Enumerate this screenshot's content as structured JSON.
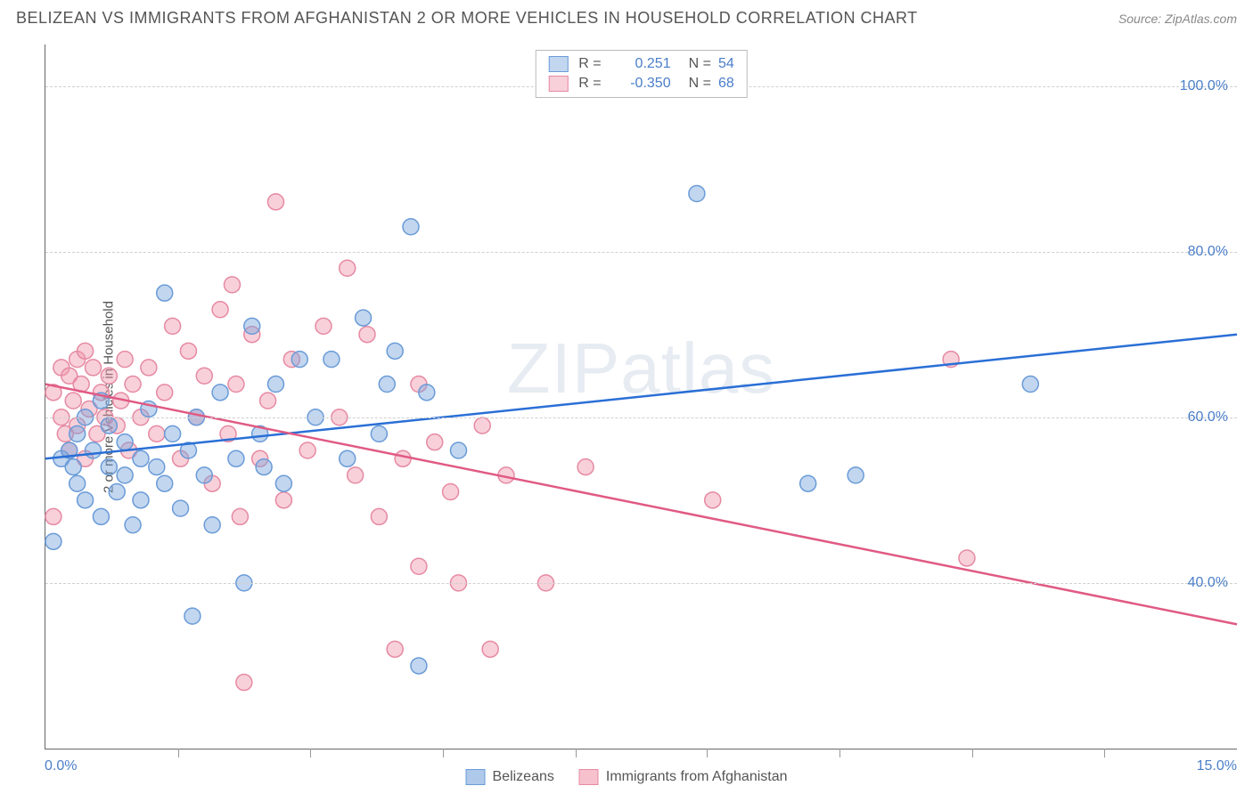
{
  "header": {
    "title": "BELIZEAN VS IMMIGRANTS FROM AFGHANISTAN 2 OR MORE VEHICLES IN HOUSEHOLD CORRELATION CHART",
    "source": "Source: ZipAtlas.com"
  },
  "chart": {
    "type": "scatter",
    "y_axis_label": "2 or more Vehicles in Household",
    "watermark": "ZIPatlas",
    "background_color": "#ffffff",
    "grid_color": "#d0d0d0",
    "axis_color": "#666666",
    "tick_label_color": "#4a7ec9",
    "label_color": "#555555",
    "xlim": [
      0,
      15
    ],
    "ylim": [
      20,
      105
    ],
    "x_ticks": [
      0,
      15
    ],
    "x_tick_labels": [
      "0.0%",
      "15.0%"
    ],
    "x_minor_ticks": [
      1.67,
      3.33,
      5.0,
      6.67,
      8.33,
      10.0,
      11.67,
      13.33
    ],
    "y_ticks": [
      40,
      60,
      80,
      100
    ],
    "y_tick_labels": [
      "40.0%",
      "60.0%",
      "80.0%",
      "100.0%"
    ],
    "marker_radius": 9,
    "marker_stroke_width": 1.5,
    "series": [
      {
        "id": "belizeans",
        "name": "Belizeans",
        "fill_color": "rgba(120, 165, 220, 0.45)",
        "stroke_color": "#6a9bd8",
        "R": "0.251",
        "N": "54",
        "trend": {
          "x1": 0,
          "y1": 55,
          "x2": 15,
          "y2": 70,
          "color": "#2a6fd6",
          "width": 2.5
        },
        "points": [
          [
            0.1,
            45
          ],
          [
            0.2,
            55
          ],
          [
            0.3,
            56
          ],
          [
            0.35,
            54
          ],
          [
            0.4,
            58
          ],
          [
            0.4,
            52
          ],
          [
            0.5,
            50
          ],
          [
            0.5,
            60
          ],
          [
            0.6,
            56
          ],
          [
            0.7,
            62
          ],
          [
            0.7,
            48
          ],
          [
            0.8,
            54
          ],
          [
            0.8,
            59
          ],
          [
            0.9,
            51
          ],
          [
            1.0,
            57
          ],
          [
            1.0,
            53
          ],
          [
            1.1,
            47
          ],
          [
            1.2,
            55
          ],
          [
            1.2,
            50
          ],
          [
            1.3,
            61
          ],
          [
            1.4,
            54
          ],
          [
            1.5,
            75
          ],
          [
            1.5,
            52
          ],
          [
            1.6,
            58
          ],
          [
            1.7,
            49
          ],
          [
            1.8,
            56
          ],
          [
            1.85,
            36
          ],
          [
            1.9,
            60
          ],
          [
            2.0,
            53
          ],
          [
            2.1,
            47
          ],
          [
            2.2,
            63
          ],
          [
            2.4,
            55
          ],
          [
            2.5,
            40
          ],
          [
            2.6,
            71
          ],
          [
            2.7,
            58
          ],
          [
            2.75,
            54
          ],
          [
            2.9,
            64
          ],
          [
            3.0,
            52
          ],
          [
            3.2,
            67
          ],
          [
            3.4,
            60
          ],
          [
            3.6,
            67
          ],
          [
            3.8,
            55
          ],
          [
            4.0,
            72
          ],
          [
            4.2,
            58
          ],
          [
            4.3,
            64
          ],
          [
            4.4,
            68
          ],
          [
            4.6,
            83
          ],
          [
            4.7,
            30
          ],
          [
            4.8,
            63
          ],
          [
            5.2,
            56
          ],
          [
            8.2,
            87
          ],
          [
            9.6,
            52
          ],
          [
            10.2,
            53
          ],
          [
            12.4,
            64
          ]
        ]
      },
      {
        "id": "afghan",
        "name": "Immigrants from Afghanistan",
        "fill_color": "rgba(240, 150, 170, 0.45)",
        "stroke_color": "#e68aa3",
        "R": "-0.350",
        "N": "68",
        "trend": {
          "x1": 0,
          "y1": 64,
          "x2": 15,
          "y2": 35,
          "color": "#e05a84",
          "width": 2.5
        },
        "points": [
          [
            0.1,
            48
          ],
          [
            0.1,
            63
          ],
          [
            0.2,
            60
          ],
          [
            0.2,
            66
          ],
          [
            0.25,
            58
          ],
          [
            0.3,
            56
          ],
          [
            0.3,
            65
          ],
          [
            0.35,
            62
          ],
          [
            0.4,
            67
          ],
          [
            0.4,
            59
          ],
          [
            0.45,
            64
          ],
          [
            0.5,
            55
          ],
          [
            0.5,
            68
          ],
          [
            0.55,
            61
          ],
          [
            0.6,
            66
          ],
          [
            0.65,
            58
          ],
          [
            0.7,
            63
          ],
          [
            0.75,
            60
          ],
          [
            0.8,
            65
          ],
          [
            0.9,
            59
          ],
          [
            0.95,
            62
          ],
          [
            1.0,
            67
          ],
          [
            1.05,
            56
          ],
          [
            1.1,
            64
          ],
          [
            1.2,
            60
          ],
          [
            1.3,
            66
          ],
          [
            1.4,
            58
          ],
          [
            1.5,
            63
          ],
          [
            1.6,
            71
          ],
          [
            1.7,
            55
          ],
          [
            1.8,
            68
          ],
          [
            1.9,
            60
          ],
          [
            2.0,
            65
          ],
          [
            2.1,
            52
          ],
          [
            2.2,
            73
          ],
          [
            2.3,
            58
          ],
          [
            2.35,
            76
          ],
          [
            2.4,
            64
          ],
          [
            2.45,
            48
          ],
          [
            2.5,
            28
          ],
          [
            2.6,
            70
          ],
          [
            2.7,
            55
          ],
          [
            2.8,
            62
          ],
          [
            2.9,
            86
          ],
          [
            3.0,
            50
          ],
          [
            3.1,
            67
          ],
          [
            3.3,
            56
          ],
          [
            3.5,
            71
          ],
          [
            3.7,
            60
          ],
          [
            3.8,
            78
          ],
          [
            3.9,
            53
          ],
          [
            4.05,
            70
          ],
          [
            4.2,
            48
          ],
          [
            4.4,
            32
          ],
          [
            4.5,
            55
          ],
          [
            4.7,
            64
          ],
          [
            4.7,
            42
          ],
          [
            4.9,
            57
          ],
          [
            5.1,
            51
          ],
          [
            5.2,
            40
          ],
          [
            5.5,
            59
          ],
          [
            5.6,
            32
          ],
          [
            5.8,
            53
          ],
          [
            6.3,
            40
          ],
          [
            6.8,
            54
          ],
          [
            8.4,
            50
          ],
          [
            11.4,
            67
          ],
          [
            11.6,
            43
          ]
        ]
      }
    ]
  },
  "bottom_legend": {
    "items": [
      {
        "label": "Belizeans",
        "fill": "rgba(120, 165, 220, 0.6)",
        "stroke": "#6a9bd8"
      },
      {
        "label": "Immigrants from Afghanistan",
        "fill": "rgba(240, 150, 170, 0.6)",
        "stroke": "#e68aa3"
      }
    ]
  }
}
